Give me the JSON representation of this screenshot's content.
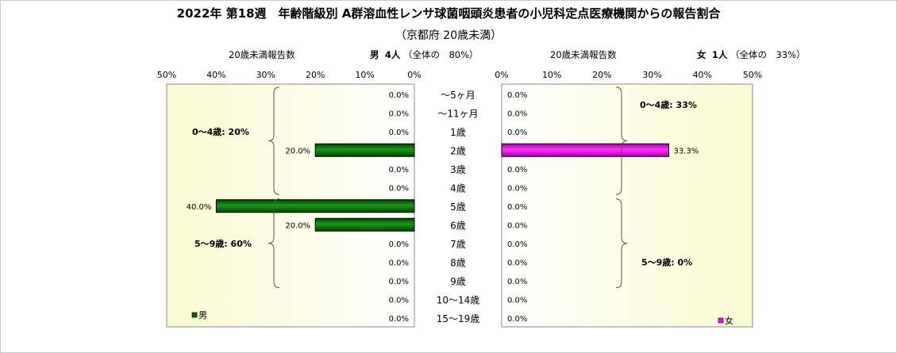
{
  "title": "2022年 第18週　年齢階級別 A群溶血性レンサ球菌咽頭炎患者の小児科定点医療機関からの報告割合",
  "subtitle": "（京都府 20歳未満）",
  "male_header": {
    "count_label": "20歳未満報告数",
    "sex": "男",
    "count": "4人",
    "share": "（全体の　80%）"
  },
  "female_header": {
    "count_label": "20歳未満報告数",
    "sex": "女",
    "count": "1人",
    "share": "（全体の　33%）"
  },
  "chart_data": {
    "type": "bar",
    "categories": [
      "～5ヶ月",
      "～11ヶ月",
      "1歳",
      "2歳",
      "3歳",
      "4歳",
      "5歳",
      "6歳",
      "7歳",
      "8歳",
      "9歳",
      "10～14歳",
      "15～19歳"
    ],
    "series": [
      {
        "name": "男",
        "values": [
          0,
          0,
          0,
          20,
          0,
          0,
          40,
          20,
          0,
          0,
          0,
          0,
          0
        ],
        "labels": [
          "0.0%",
          "0.0%",
          "0.0%",
          "20.0%",
          "0.0%",
          "0.0%",
          "40.0%",
          "20.0%",
          "0.0%",
          "0.0%",
          "0.0%",
          "0.0%",
          "0.0%"
        ],
        "color": "#006600"
      },
      {
        "name": "女",
        "values": [
          0,
          0,
          0,
          33.3,
          0,
          0,
          0,
          0,
          0,
          0,
          0,
          0,
          0
        ],
        "labels": [
          "0.0%",
          "0.0%",
          "0.0%",
          "33.3%",
          "0.0%",
          "0.0%",
          "0.0%",
          "0.0%",
          "0.0%",
          "0.0%",
          "0.0%",
          "0.0%",
          "0.0%"
        ],
        "color": "#ff00ff"
      }
    ],
    "male_axis_ticks": [
      "50%",
      "40%",
      "30%",
      "20%",
      "10%",
      "0%"
    ],
    "female_axis_ticks": [
      "0%",
      "10%",
      "20%",
      "30%",
      "40%",
      "50%"
    ],
    "xlim": [
      0,
      50
    ],
    "group_labels": {
      "male": [
        "0～4歳: 20%",
        "5～9歳: 60%"
      ],
      "female": [
        "0～4歳: 33%",
        "5～9歳: 0%"
      ]
    },
    "legend": {
      "male": "男",
      "female": "女"
    }
  }
}
